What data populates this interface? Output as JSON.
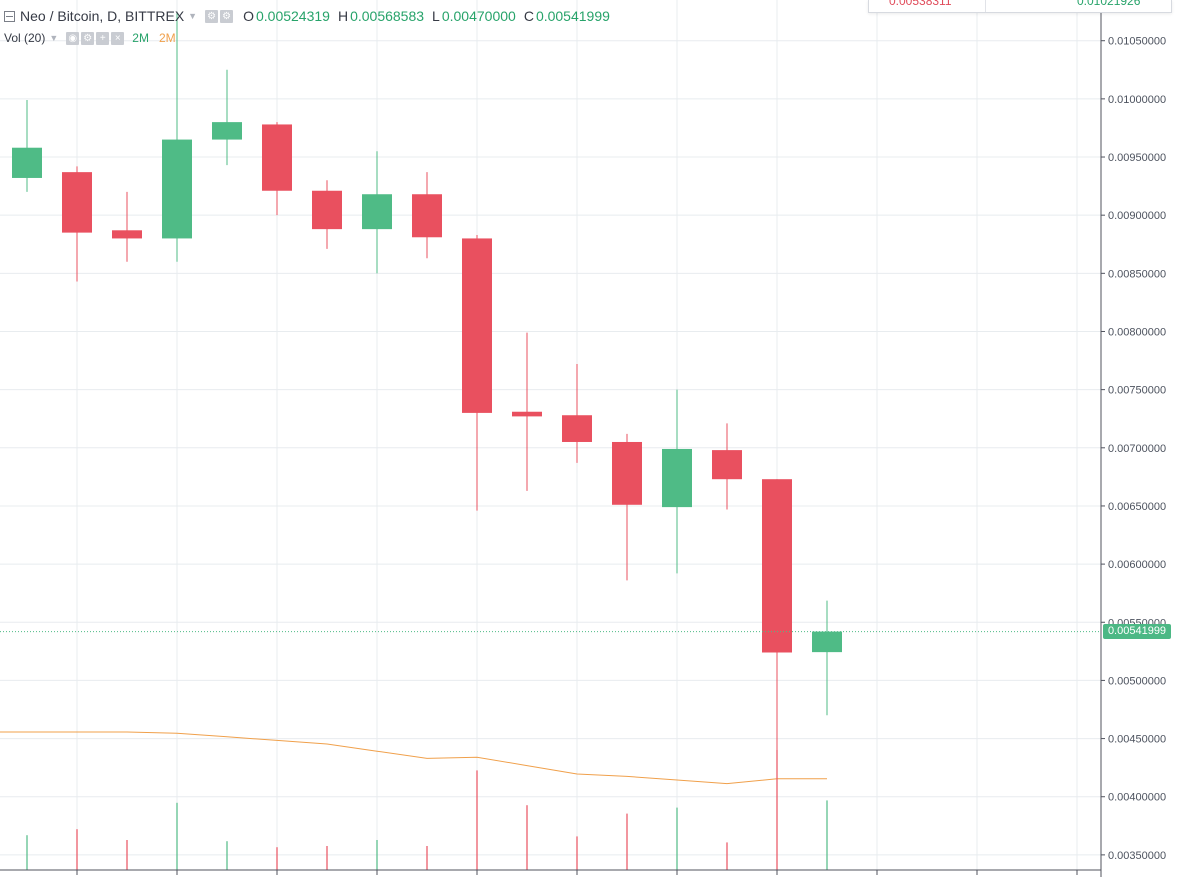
{
  "legend": {
    "symbol": "Neo / Bitcoin, D, BITTREX",
    "open_key": "O",
    "open": "0.00524319",
    "high_key": "H",
    "high": "0.00568583",
    "low_key": "L",
    "low": "0.00470000",
    "close_key": "C",
    "close": "0.00541999"
  },
  "volume_legend": {
    "label": "Vol (20)",
    "volume": "2M",
    "volume_ma": "2M"
  },
  "top_panel": {
    "left_value": "0.00538311",
    "right_value": "0.01021926"
  },
  "current_price_label": "0.00541999",
  "colors": {
    "up": "#4fbb86",
    "down": "#e9505f",
    "volume_ma": "#f0a04b",
    "grid": "#e8ecef",
    "price_line": "#4fbb86",
    "axis_text": "#4c525e"
  },
  "chart_data": {
    "type": "candlestick",
    "title": "Neo / Bitcoin, D, BITTREX",
    "y_axis_side": "right",
    "ylim": [
      0.00337,
      0.01085
    ],
    "y_ticks": [
      "0.01050000",
      "0.01000000",
      "0.00950000",
      "0.00900000",
      "0.00850000",
      "0.00800000",
      "0.00750000",
      "0.00700000",
      "0.00650000",
      "0.00600000",
      "0.00550000",
      "0.00500000",
      "0.00450000",
      "0.00400000",
      "0.00350000"
    ],
    "grid": true,
    "current_price": 0.00541999,
    "candles": [
      {
        "o": 0.00932,
        "h": 0.00999,
        "l": 0.0092,
        "c": 0.00958
      },
      {
        "o": 0.00937,
        "h": 0.00942,
        "l": 0.00843,
        "c": 0.00885
      },
      {
        "o": 0.00887,
        "h": 0.0092,
        "l": 0.0086,
        "c": 0.0088
      },
      {
        "o": 0.0088,
        "h": 0.01075,
        "l": 0.0086,
        "c": 0.00965
      },
      {
        "o": 0.00965,
        "h": 0.01025,
        "l": 0.00943,
        "c": 0.0098
      },
      {
        "o": 0.00978,
        "h": 0.0098,
        "l": 0.009,
        "c": 0.00921
      },
      {
        "o": 0.00921,
        "h": 0.0093,
        "l": 0.00871,
        "c": 0.00888
      },
      {
        "o": 0.00888,
        "h": 0.00955,
        "l": 0.0085,
        "c": 0.00918
      },
      {
        "o": 0.00918,
        "h": 0.00937,
        "l": 0.00863,
        "c": 0.00881
      },
      {
        "o": 0.0088,
        "h": 0.00883,
        "l": 0.00646,
        "c": 0.0073
      },
      {
        "o": 0.00731,
        "h": 0.00799,
        "l": 0.00663,
        "c": 0.00727
      },
      {
        "o": 0.00728,
        "h": 0.00772,
        "l": 0.00687,
        "c": 0.00705
      },
      {
        "o": 0.00705,
        "h": 0.00712,
        "l": 0.00586,
        "c": 0.00651
      },
      {
        "o": 0.00649,
        "h": 0.0075,
        "l": 0.00592,
        "c": 0.00699
      },
      {
        "o": 0.00698,
        "h": 0.00721,
        "l": 0.00647,
        "c": 0.00673
      },
      {
        "o": 0.00673,
        "h": 0.00673,
        "l": 0.00378,
        "c": 0.00524
      },
      {
        "o": 0.00524319,
        "h": 0.00568583,
        "l": 0.0047,
        "c": 0.00541999
      }
    ],
    "volume": {
      "label": "Vol (20)",
      "relative_values": [
        0.29,
        0.34,
        0.25,
        0.56,
        0.24,
        0.19,
        0.2,
        0.25,
        0.2,
        0.83,
        0.54,
        0.28,
        0.47,
        0.52,
        0.23,
        1.0,
        0.58
      ],
      "ma_relative_values": [
        1.15,
        1.15,
        1.15,
        1.14,
        1.11,
        1.08,
        1.05,
        0.99,
        0.93,
        0.94,
        0.87,
        0.8,
        0.78,
        0.75,
        0.72,
        0.76,
        0.76
      ]
    }
  }
}
